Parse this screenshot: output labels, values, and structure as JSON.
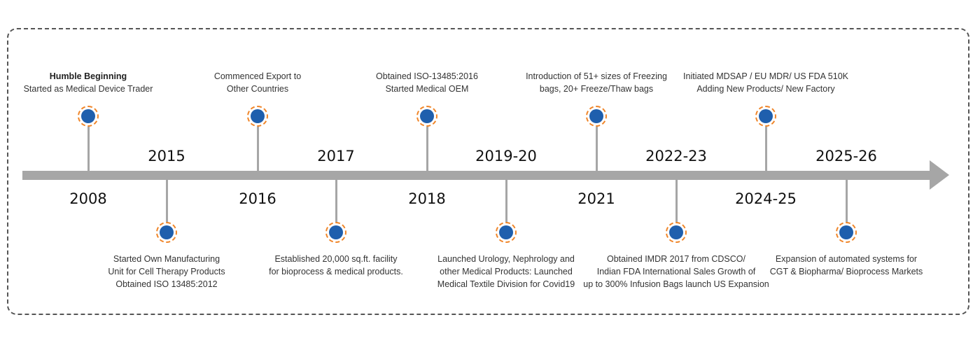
{
  "timeline": {
    "events": [
      {
        "year": "2008",
        "lines": [
          "Started as Medical Device Trader"
        ],
        "heading": "Humble Beginning"
      },
      {
        "year": "2015",
        "lines": [
          "Started Own Manufacturing",
          "Unit for Cell Therapy Products",
          "Obtained ISO 13485:2012"
        ]
      },
      {
        "year": "2016",
        "lines": [
          "Commenced Export to",
          "Other Countries"
        ]
      },
      {
        "year": "2017",
        "lines": [
          "Established 20,000 sq.ft. facility",
          "for bioprocess & medical products."
        ]
      },
      {
        "year": "2018",
        "lines": [
          "Obtained ISO-13485:2016",
          "Started Medical OEM"
        ]
      },
      {
        "year": "2019-20",
        "lines": [
          "Launched Urology, Nephrology and",
          "other Medical Products: Launched",
          "Medical Textile Division for Covid19"
        ]
      },
      {
        "year": "2021",
        "lines": [
          "Introduction of 51+ sizes of Freezing",
          "bags,  20+ Freeze/Thaw bags"
        ]
      },
      {
        "year": "2022-23",
        "lines": [
          "Obtained IMDR 2017 from CDSCO/",
          "Indian FDA International Sales Growth of",
          "up to 300% Infusion Bags launch US Expansion"
        ]
      },
      {
        "year": "2024-25",
        "lines": [
          "Initiated MDSAP / EU MDR/ US FDA 510K",
          "Adding New Products/ New Factory"
        ]
      },
      {
        "year": "2025-26",
        "lines": [
          "Expansion of automated systems for",
          "CGT & Biopharma/ Bioprocess Markets"
        ]
      }
    ]
  },
  "colors": {
    "axis": "#a6a6a6",
    "node": "#1f5fad",
    "node_ring": "#f0862a",
    "frame": "#555555"
  }
}
